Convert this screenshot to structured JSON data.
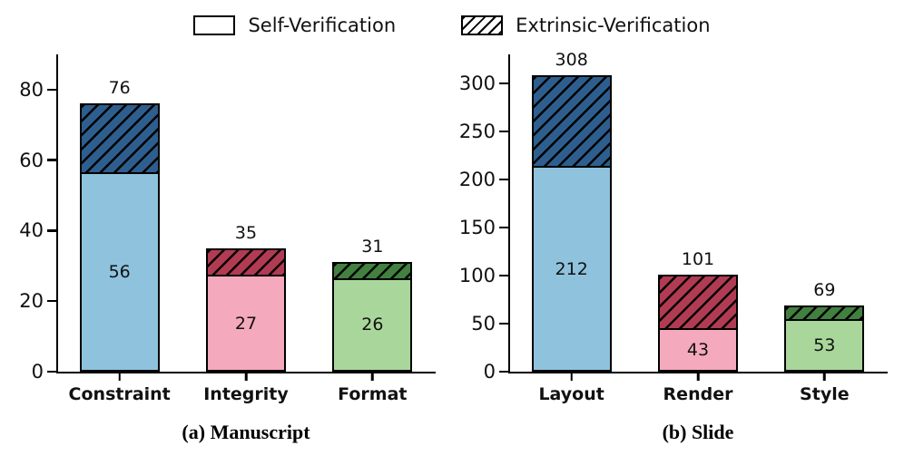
{
  "legend": {
    "self_label": "Self-Verification",
    "extrinsic_label": "Extrinsic-Verification"
  },
  "chart_data": [
    {
      "type": "bar",
      "stacked": true,
      "caption": "(a) Manuscript",
      "categories": [
        "Constraint",
        "Integrity",
        "Format"
      ],
      "series": [
        {
          "name": "Self-Verification",
          "values": [
            56,
            27,
            26
          ]
        },
        {
          "name": "Extrinsic-Verification",
          "values": [
            20,
            8,
            5
          ]
        }
      ],
      "totals": [
        76,
        35,
        31
      ],
      "ylim": [
        0,
        90
      ],
      "yticks": [
        0,
        20,
        40,
        60,
        80
      ],
      "colors": {
        "light": [
          "#8fc2dd",
          "#f4a9bc",
          "#a9d79b"
        ],
        "dark": [
          "#2d5e8e",
          "#b13b52",
          "#41803f"
        ]
      },
      "legend_position": "top",
      "grid": false
    },
    {
      "type": "bar",
      "stacked": true,
      "caption": "(b) Slide",
      "categories": [
        "Layout",
        "Render",
        "Style"
      ],
      "series": [
        {
          "name": "Self-Verification",
          "values": [
            212,
            43,
            53
          ]
        },
        {
          "name": "Extrinsic-Verification",
          "values": [
            96,
            58,
            16
          ]
        }
      ],
      "totals": [
        308,
        101,
        69
      ],
      "ylim": [
        0,
        330
      ],
      "yticks": [
        0,
        50,
        100,
        150,
        200,
        250,
        300
      ],
      "colors": {
        "light": [
          "#8fc2dd",
          "#f4a9bc",
          "#a9d79b"
        ],
        "dark": [
          "#2d5e8e",
          "#b13b52",
          "#41803f"
        ]
      },
      "legend_position": "top",
      "grid": false
    }
  ]
}
